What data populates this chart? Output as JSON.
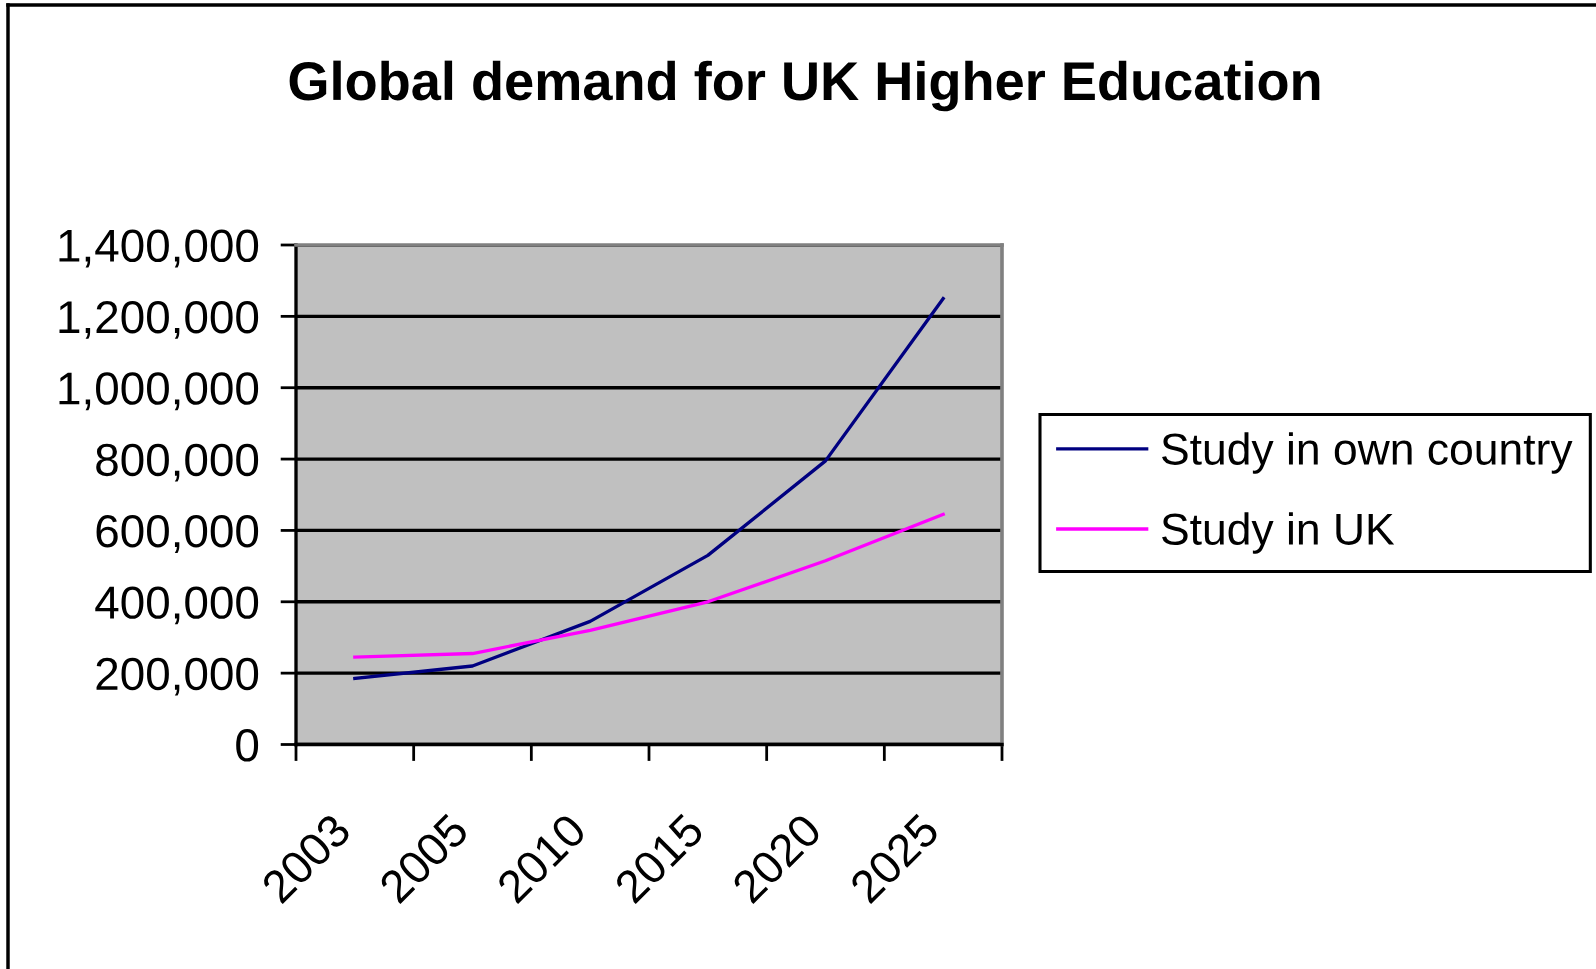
{
  "chart_data": {
    "type": "line",
    "title": "Global demand for UK Higher Education",
    "categories": [
      "2003",
      "2005",
      "2010",
      "2015",
      "2020",
      "2025"
    ],
    "series": [
      {
        "name": "Study in own country",
        "color": "#000080",
        "values": [
          185000,
          220000,
          345000,
          530000,
          795000,
          1250000
        ]
      },
      {
        "name": "Study in UK",
        "color": "#ff00ff",
        "values": [
          245000,
          255000,
          320000,
          400000,
          515000,
          645000
        ]
      }
    ],
    "ylim": [
      0,
      1400000
    ],
    "yticks": [
      0,
      {
        "value": 200000,
        "label": "200,000"
      },
      {
        "value": 400000,
        "label": "400,000"
      },
      {
        "value": 600000,
        "label": "600,000"
      },
      {
        "value": 800000,
        "label": "800,000"
      },
      {
        "value": 1000000,
        "label": "1,000,000"
      },
      {
        "value": 1200000,
        "label": "1,200,000"
      },
      {
        "value": 1400000,
        "label": "1,400,000"
      }
    ],
    "grid": "y",
    "legend": "right",
    "line_style": "solid"
  }
}
